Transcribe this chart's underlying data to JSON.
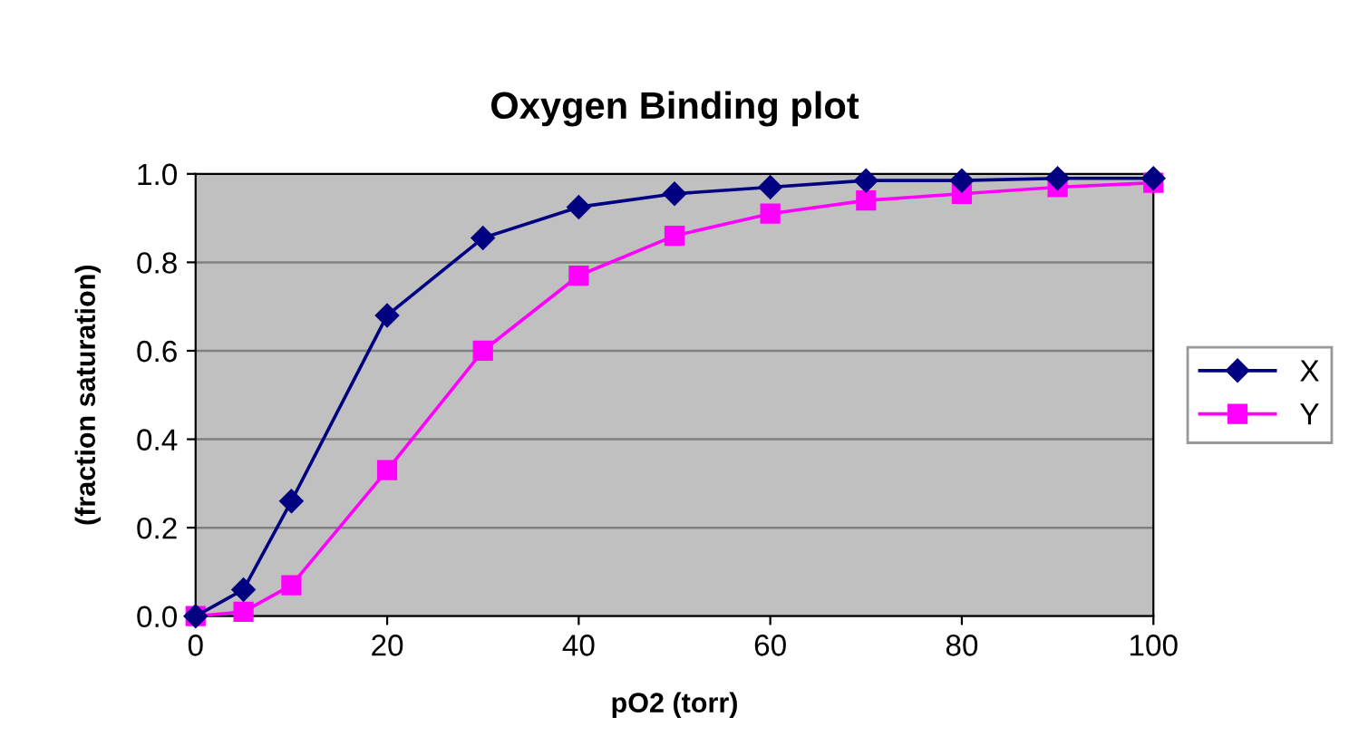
{
  "chart_data": {
    "type": "line",
    "title": "Oxygen Binding plot",
    "xlabel": "pO2 (torr)",
    "ylabel": "(fraction saturation)",
    "x": [
      0,
      5,
      10,
      20,
      30,
      40,
      50,
      60,
      70,
      80,
      90,
      100
    ],
    "series": [
      {
        "name": "X",
        "color": "#000080",
        "marker": "diamond",
        "values": [
          0,
          0.06,
          0.26,
          0.68,
          0.855,
          0.925,
          0.955,
          0.97,
          0.985,
          0.985,
          0.99,
          0.99
        ]
      },
      {
        "name": "Y",
        "color": "#ff00ff",
        "marker": "square",
        "values": [
          0,
          0.01,
          0.07,
          0.33,
          0.6,
          0.77,
          0.86,
          0.91,
          0.94,
          0.955,
          0.97,
          0.98
        ]
      }
    ],
    "xlim": [
      0,
      100
    ],
    "xticks": [
      0,
      20,
      40,
      60,
      80,
      100
    ],
    "ylim": [
      0,
      1
    ],
    "yticks": [
      {
        "value": 0,
        "label": "0.0"
      },
      {
        "value": 0.2,
        "label": "0.2"
      },
      {
        "value": 0.4,
        "label": "0.4"
      },
      {
        "value": 0.6,
        "label": "0.6"
      },
      {
        "value": 0.8,
        "label": "0.8"
      },
      {
        "value": 1,
        "label": "1.0"
      }
    ],
    "grid": "y",
    "legend": "right",
    "line_style": "solid"
  }
}
